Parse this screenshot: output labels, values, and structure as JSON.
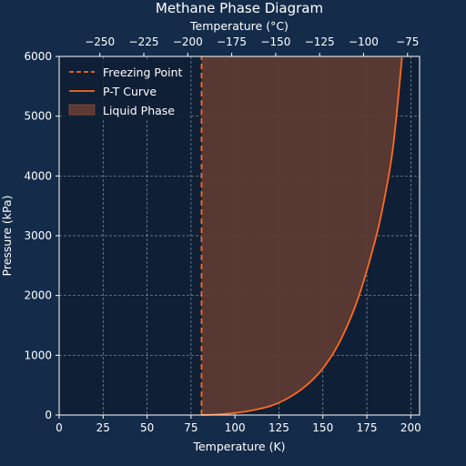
{
  "chart_data": {
    "type": "line",
    "title": "Methane Phase Diagram",
    "xlabel": "Temperature (K)",
    "ylabel": "Pressure (kPa)",
    "secondary_xlabel": "Temperature (°C)",
    "xlim": [
      0,
      205
    ],
    "ylim": [
      0,
      6000
    ],
    "x_ticks": [
      "0",
      "25",
      "50",
      "75",
      "100",
      "125",
      "150",
      "175",
      "200"
    ],
    "y_ticks": [
      "0",
      "1000",
      "2000",
      "3000",
      "4000",
      "5000",
      "6000"
    ],
    "secondary_x_ticks": [
      "−250",
      "−225",
      "−200",
      "−175",
      "−150",
      "−125",
      "−100",
      "−75"
    ],
    "grid": true,
    "legend_position": "top-left",
    "series": [
      {
        "name": "P-T Curve",
        "style": "solid",
        "color": "#ff6a1f",
        "x": [
          81,
          90,
          100,
          110,
          120,
          130,
          140,
          150,
          160,
          170,
          180,
          185,
          190,
          195
        ],
        "y": [
          0,
          10,
          35,
          80,
          150,
          280,
          480,
          780,
          1250,
          1950,
          2950,
          3620,
          4500,
          5980
        ]
      },
      {
        "name": "Freezing Point",
        "style": "dashed",
        "color": "#ff6a1f",
        "x": [
          81,
          81
        ],
        "y": [
          0,
          6000
        ]
      }
    ],
    "fill": {
      "name": "Liquid Phase",
      "color": "#5c3a33",
      "between": [
        "Freezing Point",
        "P-T Curve"
      ]
    },
    "background_color": "#142c4a",
    "plot_background_color": "#0f2036"
  }
}
